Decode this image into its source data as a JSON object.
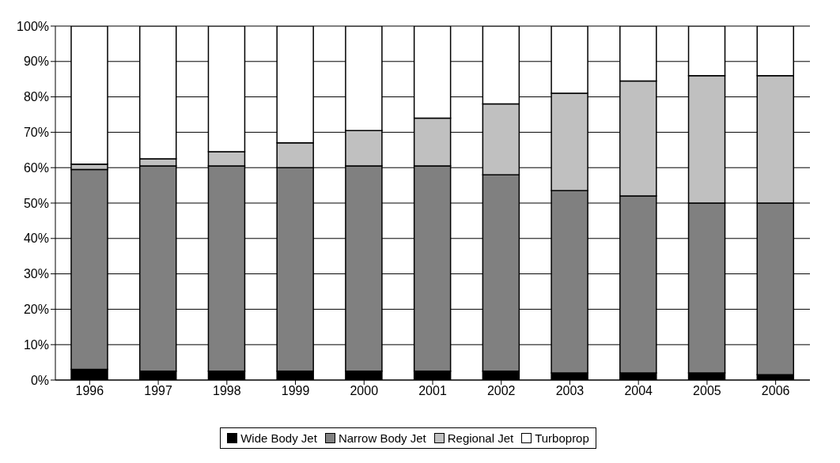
{
  "chart_data": {
    "type": "bar",
    "stacked": true,
    "categories": [
      "1996",
      "1997",
      "1998",
      "1999",
      "2000",
      "2001",
      "2002",
      "2003",
      "2004",
      "2005",
      "2006"
    ],
    "series": [
      {
        "name": "Wide Body Jet",
        "color": "#000000",
        "values": [
          3,
          2.5,
          2.5,
          2.5,
          2.5,
          2.5,
          2.5,
          2,
          2,
          2,
          1.5
        ]
      },
      {
        "name": "Narrow Body Jet",
        "color": "#808080",
        "values": [
          56.5,
          58,
          58,
          57.5,
          58,
          58,
          55.5,
          51.5,
          50,
          48,
          48.5
        ]
      },
      {
        "name": "Regional Jet",
        "color": "#c0c0c0",
        "values": [
          1.5,
          2,
          4,
          7,
          10,
          13.5,
          20,
          27.5,
          32.5,
          36,
          36
        ]
      },
      {
        "name": "Turboprop",
        "color": "#ffffff",
        "values": [
          39,
          37.5,
          35.5,
          33,
          29.5,
          26,
          22,
          19,
          15.5,
          14,
          14
        ]
      }
    ],
    "ylim": [
      0,
      100
    ],
    "yticks": [
      {
        "value": 0,
        "label": "0%"
      },
      {
        "value": 10,
        "label": "10%"
      },
      {
        "value": 20,
        "label": "20%"
      },
      {
        "value": 30,
        "label": "30%"
      },
      {
        "value": 40,
        "label": "40%"
      },
      {
        "value": 50,
        "label": "50%"
      },
      {
        "value": 60,
        "label": "60%"
      },
      {
        "value": 70,
        "label": "70%"
      },
      {
        "value": 80,
        "label": "80%"
      },
      {
        "value": 90,
        "label": "90%"
      },
      {
        "value": 100,
        "label": "100%"
      }
    ],
    "grid": "y",
    "legend": "bottom"
  }
}
